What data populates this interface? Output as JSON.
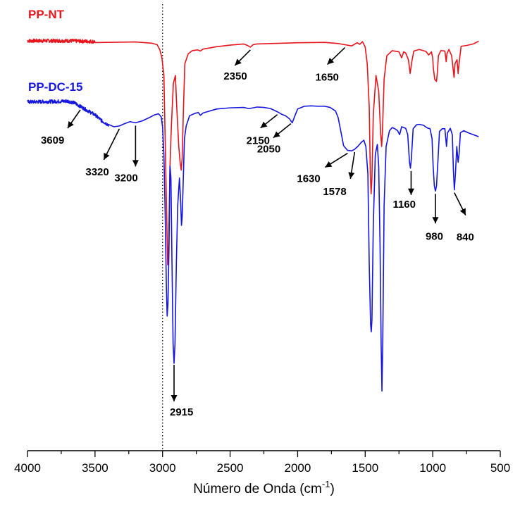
{
  "chart_data": {
    "type": "line",
    "xlabel_main": "Número de Onda (cm",
    "xlabel_sup": "-1",
    "xlabel_end": ")",
    "ylabel": "",
    "xlim": [
      4000,
      500
    ],
    "x_reversed": true,
    "x_ticks": [
      4000,
      3500,
      3000,
      2500,
      2000,
      1500,
      1000,
      500
    ],
    "x_tick_labels": [
      "4000",
      "3500",
      "3000",
      "2500",
      "2000",
      "1500",
      "1000",
      "500"
    ],
    "y_axis_visible": false,
    "ylim": [
      0,
      100
    ],
    "reference_line_x": 3000,
    "grid": false,
    "series": [
      {
        "name": "PP-NT",
        "color": "#e8141c",
        "noisy_x_range": [
          4000,
          3500
        ],
        "points": [
          [
            4000,
            96.8
          ],
          [
            3700,
            96.8
          ],
          [
            3500,
            96.6
          ],
          [
            3200,
            96.5
          ],
          [
            3080,
            96.2
          ],
          [
            3040,
            95.8
          ],
          [
            3020,
            94.5
          ],
          [
            3005,
            92.5
          ],
          [
            2990,
            88
          ],
          [
            2975,
            62
          ],
          [
            2962,
            40
          ],
          [
            2955,
            45
          ],
          [
            2945,
            65
          ],
          [
            2935,
            75
          ],
          [
            2920,
            86
          ],
          [
            2905,
            88
          ],
          [
            2895,
            80
          ],
          [
            2880,
            70
          ],
          [
            2870,
            66
          ],
          [
            2862,
            64
          ],
          [
            2855,
            67
          ],
          [
            2845,
            80
          ],
          [
            2835,
            91
          ],
          [
            2810,
            93.5
          ],
          [
            2780,
            94.3
          ],
          [
            2740,
            94.5
          ],
          [
            2720,
            94.2
          ],
          [
            2700,
            94.7
          ],
          [
            2600,
            95.3
          ],
          [
            2500,
            95.7
          ],
          [
            2400,
            96.0
          ],
          [
            2370,
            95.6
          ],
          [
            2350,
            95.2
          ],
          [
            2330,
            95.8
          ],
          [
            2300,
            96.0
          ],
          [
            2000,
            96.3
          ],
          [
            1800,
            96.4
          ],
          [
            1700,
            96.1
          ],
          [
            1650,
            95.8
          ],
          [
            1600,
            95.5
          ],
          [
            1560,
            96.3
          ],
          [
            1540,
            95.9
          ],
          [
            1520,
            96.6
          ],
          [
            1500,
            95.2
          ],
          [
            1485,
            91
          ],
          [
            1470,
            80
          ],
          [
            1462,
            63
          ],
          [
            1456,
            58
          ],
          [
            1450,
            62
          ],
          [
            1440,
            78
          ],
          [
            1420,
            88
          ],
          [
            1400,
            84
          ],
          [
            1385,
            73
          ],
          [
            1378,
            70
          ],
          [
            1372,
            74
          ],
          [
            1360,
            87
          ],
          [
            1340,
            93
          ],
          [
            1300,
            94.3
          ],
          [
            1250,
            94.0
          ],
          [
            1230,
            92.5
          ],
          [
            1215,
            94.0
          ],
          [
            1200,
            93.7
          ],
          [
            1180,
            92
          ],
          [
            1167,
            88.5
          ],
          [
            1155,
            91.5
          ],
          [
            1140,
            94.2
          ],
          [
            1100,
            94.6
          ],
          [
            1050,
            94.1
          ],
          [
            1030,
            93.2
          ],
          [
            1010,
            94.0
          ],
          [
            1000,
            92.5
          ],
          [
            996,
            90
          ],
          [
            985,
            87
          ],
          [
            972,
            86.5
          ],
          [
            965,
            89
          ],
          [
            958,
            93
          ],
          [
            940,
            94.3
          ],
          [
            910,
            94.2
          ],
          [
            900,
            91.5
          ],
          [
            895,
            93.5
          ],
          [
            880,
            94.6
          ],
          [
            860,
            93
          ],
          [
            850,
            90
          ],
          [
            842,
            87.5
          ],
          [
            835,
            91
          ],
          [
            820,
            92
          ],
          [
            812,
            88.5
          ],
          [
            805,
            91
          ],
          [
            790,
            95.4
          ],
          [
            750,
            95.6
          ],
          [
            700,
            96.0
          ],
          [
            660,
            96.7
          ]
        ]
      },
      {
        "name": "PP-DC-15",
        "color": "#1515e0",
        "noisy_x_range": [
          4000,
          3400
        ],
        "points": [
          [
            4000,
            81.3
          ],
          [
            3800,
            81.4
          ],
          [
            3700,
            81.5
          ],
          [
            3650,
            81.0
          ],
          [
            3600,
            80.0
          ],
          [
            3550,
            79.0
          ],
          [
            3500,
            78.0
          ],
          [
            3450,
            76.5
          ],
          [
            3400,
            75.5
          ],
          [
            3360,
            75.0
          ],
          [
            3320,
            75.2
          ],
          [
            3280,
            75.8
          ],
          [
            3240,
            76.3
          ],
          [
            3200,
            76.0
          ],
          [
            3150,
            76.5
          ],
          [
            3100,
            77.3
          ],
          [
            3060,
            78.0
          ],
          [
            3030,
            78.3
          ],
          [
            3010,
            77.5
          ],
          [
            3000,
            75
          ],
          [
            2990,
            68
          ],
          [
            2980,
            52
          ],
          [
            2972,
            35
          ],
          [
            2966,
            27
          ],
          [
            2960,
            30
          ],
          [
            2952,
            45
          ],
          [
            2945,
            65
          ],
          [
            2938,
            62
          ],
          [
            2930,
            40
          ],
          [
            2922,
            20
          ],
          [
            2915,
            15
          ],
          [
            2908,
            20
          ],
          [
            2898,
            40
          ],
          [
            2888,
            55
          ],
          [
            2875,
            62
          ],
          [
            2866,
            56
          ],
          [
            2860,
            50
          ],
          [
            2855,
            52
          ],
          [
            2848,
            60
          ],
          [
            2838,
            72
          ],
          [
            2825,
            75.2
          ],
          [
            2800,
            77.8
          ],
          [
            2760,
            78.4
          ],
          [
            2735,
            78.6
          ],
          [
            2720,
            77.9
          ],
          [
            2700,
            78.5
          ],
          [
            2600,
            79.5
          ],
          [
            2500,
            79.8
          ],
          [
            2400,
            79.9
          ],
          [
            2360,
            79.6
          ],
          [
            2300,
            80.0
          ],
          [
            2250,
            79.9
          ],
          [
            2200,
            79.6
          ],
          [
            2150,
            78.8
          ],
          [
            2120,
            78.2
          ],
          [
            2090,
            77.8
          ],
          [
            2060,
            77.0
          ],
          [
            2040,
            76.0
          ],
          [
            2020,
            77.8
          ],
          [
            2000,
            79.5
          ],
          [
            1950,
            80.2
          ],
          [
            1900,
            80.3
          ],
          [
            1850,
            80.2
          ],
          [
            1800,
            80.2
          ],
          [
            1760,
            79.9
          ],
          [
            1720,
            79.0
          ],
          [
            1700,
            77.3
          ],
          [
            1680,
            73.8
          ],
          [
            1660,
            70.2
          ],
          [
            1630,
            69.0
          ],
          [
            1600,
            68.9
          ],
          [
            1578,
            69.3
          ],
          [
            1555,
            70.0
          ],
          [
            1530,
            71.0
          ],
          [
            1510,
            71.6
          ],
          [
            1495,
            70.0
          ],
          [
            1480,
            63
          ],
          [
            1470,
            40
          ],
          [
            1460,
            25
          ],
          [
            1455,
            23
          ],
          [
            1450,
            26
          ],
          [
            1440,
            50
          ],
          [
            1425,
            68
          ],
          [
            1410,
            70.5
          ],
          [
            1400,
            65
          ],
          [
            1390,
            45
          ],
          [
            1382,
            20
          ],
          [
            1376,
            8
          ],
          [
            1370,
            20
          ],
          [
            1360,
            55
          ],
          [
            1345,
            70
          ],
          [
            1320,
            74
          ],
          [
            1300,
            74.8
          ],
          [
            1280,
            74.5
          ],
          [
            1260,
            74.0
          ],
          [
            1245,
            73.0
          ],
          [
            1230,
            75.0
          ],
          [
            1200,
            74.6
          ],
          [
            1185,
            73.0
          ],
          [
            1172,
            66
          ],
          [
            1165,
            64.5
          ],
          [
            1158,
            67
          ],
          [
            1145,
            74.5
          ],
          [
            1120,
            75.5
          ],
          [
            1100,
            75.6
          ],
          [
            1070,
            75.4
          ],
          [
            1040,
            74.7
          ],
          [
            1020,
            74.5
          ],
          [
            1005,
            72
          ],
          [
            997,
            65
          ],
          [
            988,
            60
          ],
          [
            980,
            58.7
          ],
          [
            972,
            60
          ],
          [
            962,
            66
          ],
          [
            950,
            73.8
          ],
          [
            930,
            74.5
          ],
          [
            910,
            74.5
          ],
          [
            898,
            70
          ],
          [
            890,
            73.5
          ],
          [
            870,
            74.6
          ],
          [
            855,
            73
          ],
          [
            847,
            64
          ],
          [
            840,
            59
          ],
          [
            832,
            63
          ],
          [
            822,
            70
          ],
          [
            812,
            66
          ],
          [
            805,
            68
          ],
          [
            795,
            73.5
          ],
          [
            770,
            74.0
          ],
          [
            740,
            73.5
          ],
          [
            700,
            73.0
          ],
          [
            660,
            72.5
          ]
        ]
      }
    ],
    "series_labels": [
      {
        "text": "PP-NT",
        "color": "#e8141c"
      },
      {
        "text": "PP-DC-15",
        "color": "#1515e0"
      }
    ],
    "annotations": [
      {
        "text": "2350",
        "x": 2350,
        "y": 95.2
      },
      {
        "text": "1650",
        "x": 1650,
        "y": 95.8
      },
      {
        "text": "3609",
        "x": 3609,
        "y": 80.0
      },
      {
        "text": "3320",
        "x": 3320,
        "y": 75.2
      },
      {
        "text": "3200",
        "x": 3200,
        "y": 76.0
      },
      {
        "text": "2150",
        "x": 2150,
        "y": 78.8
      },
      {
        "text": "2050",
        "x": 2050,
        "y": 76.5
      },
      {
        "text": "1630",
        "x": 1630,
        "y": 69.0
      },
      {
        "text": "1578",
        "x": 1578,
        "y": 69.3
      },
      {
        "text": "1160",
        "x": 1160,
        "y": 64.5
      },
      {
        "text": "980",
        "x": 980,
        "y": 58.7
      },
      {
        "text": "840",
        "x": 840,
        "y": 59
      },
      {
        "text": "2915",
        "x": 2915,
        "y": 15
      }
    ]
  }
}
